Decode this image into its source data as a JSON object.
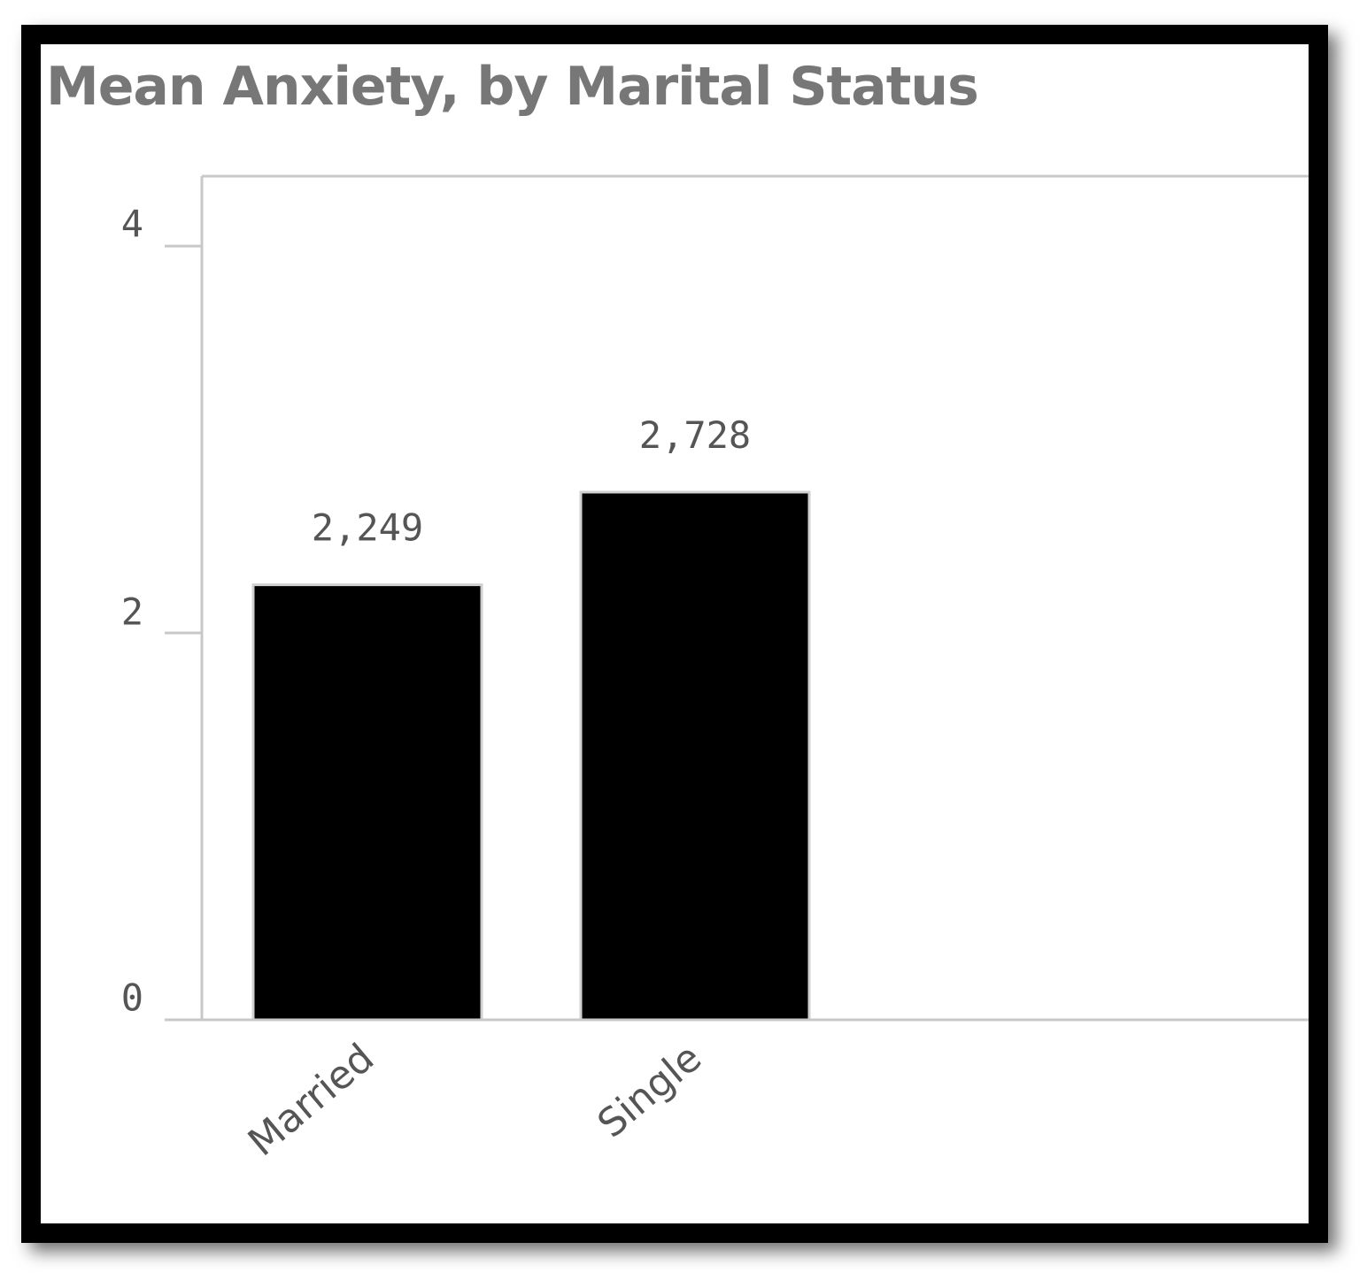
{
  "chart_data": {
    "type": "bar",
    "title": "Mean Anxiety, by Marital Status",
    "xlabel": "",
    "ylabel": "",
    "categories": [
      "Married",
      "Single"
    ],
    "values": [
      2.249,
      2.728
    ],
    "value_labels": [
      "2,249",
      "2,728"
    ],
    "ylim": [
      0,
      4
    ],
    "yticks": [
      0,
      2,
      4
    ],
    "ytick_labels": [
      "0",
      "2",
      "4"
    ],
    "grid": false,
    "legend": "none",
    "bar_color": "#000000"
  }
}
